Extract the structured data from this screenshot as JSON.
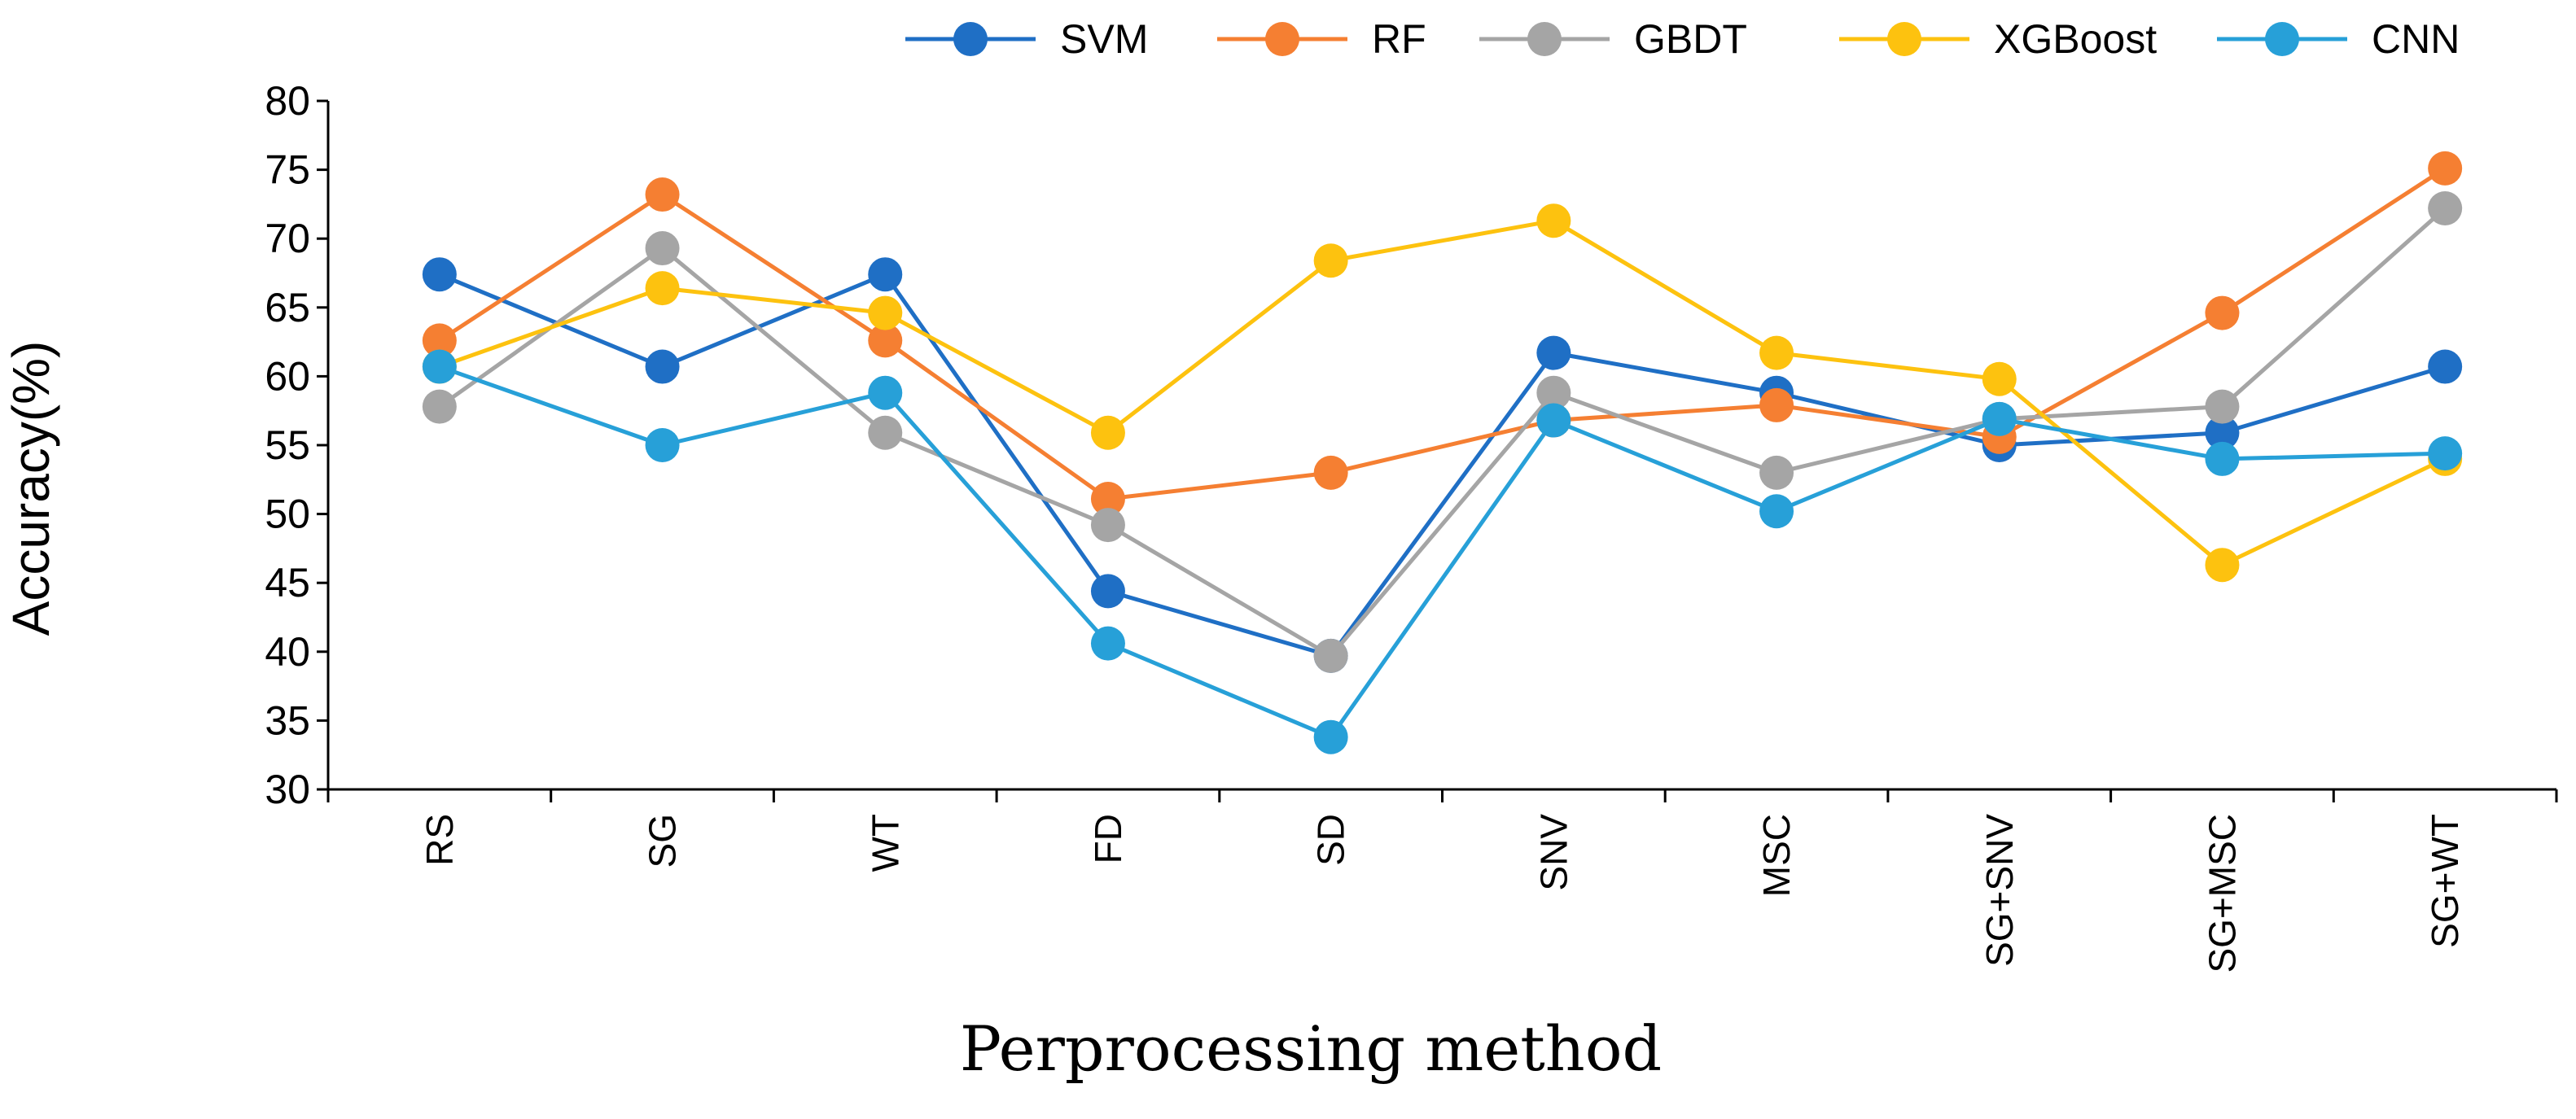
{
  "chart_data": {
    "type": "line",
    "title": "",
    "xlabel": "Perprocessing method",
    "ylabel": "Accuracy(%)",
    "ylim": [
      30,
      80
    ],
    "yticks": [
      30,
      35,
      40,
      45,
      50,
      55,
      60,
      65,
      70,
      75,
      80
    ],
    "legend_position": "top",
    "grid": false,
    "categories": [
      "RS",
      "SG",
      "WT",
      "FD",
      "SD",
      "SNV",
      "MSC",
      "SG+SNV",
      "SG+MSC",
      "SG+WT"
    ],
    "series": [
      {
        "name": "SVM",
        "color": "#1f6fc5",
        "values": [
          67.4,
          60.7,
          67.4,
          44.4,
          39.7,
          61.7,
          58.8,
          55.0,
          55.9,
          60.7
        ]
      },
      {
        "name": "RF",
        "color": "#f57f32",
        "values": [
          62.6,
          73.2,
          62.6,
          51.1,
          53.0,
          56.8,
          57.9,
          55.6,
          64.6,
          75.1
        ]
      },
      {
        "name": "GBDT",
        "color": "#a5a5a5",
        "values": [
          57.8,
          69.3,
          55.9,
          49.2,
          39.7,
          58.8,
          53.0,
          56.9,
          57.8,
          72.2
        ]
      },
      {
        "name": "XGBoost",
        "color": "#fdc20f",
        "values": [
          60.7,
          66.4,
          64.6,
          55.9,
          68.4,
          71.3,
          61.7,
          59.8,
          46.3,
          54.0
        ]
      },
      {
        "name": "CNN",
        "color": "#27a0d8",
        "values": [
          60.7,
          55.0,
          58.8,
          40.6,
          33.8,
          56.8,
          50.2,
          56.9,
          54.0,
          54.4
        ]
      }
    ]
  }
}
